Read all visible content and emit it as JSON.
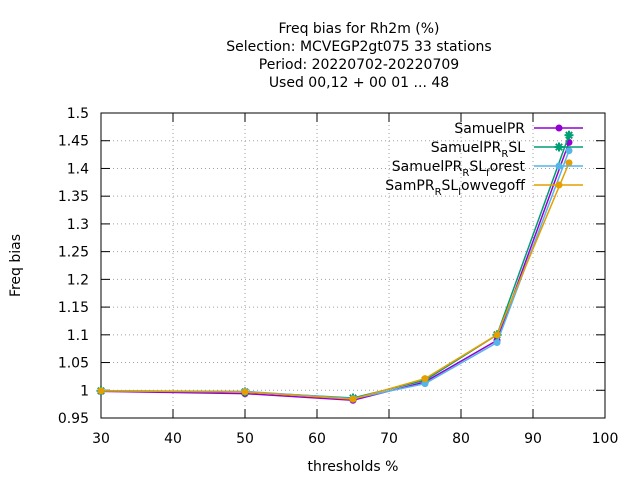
{
  "chart_data": {
    "type": "line",
    "title_lines": [
      "Freq bias  for Rh2m (%)",
      "Selection: MCVEGP2gt075      33 stations",
      "Period: 20220702-20220709",
      "Used  00,12  + 00 01 ... 48"
    ],
    "xlabel": "thresholds %",
    "ylabel": "Freq bias",
    "xlim": [
      30,
      100
    ],
    "ylim": [
      0.95,
      1.5
    ],
    "xticks": [
      30,
      40,
      50,
      60,
      70,
      80,
      90,
      100
    ],
    "yticks": [
      0.95,
      1,
      1.05,
      1.1,
      1.15,
      1.2,
      1.25,
      1.3,
      1.35,
      1.4,
      1.45,
      1.5
    ],
    "grid": true,
    "legend_position": "top-right",
    "x": [
      30,
      50,
      65,
      75,
      85,
      95
    ],
    "series": [
      {
        "name": "SamuelPR",
        "base": "SamuelPR",
        "sub": "",
        "rest": "",
        "sub2": "",
        "rest2": "",
        "color": "#9400d3",
        "marker": "circle",
        "values": [
          0.998,
          0.994,
          0.982,
          1.015,
          1.09,
          1.447
        ]
      },
      {
        "name": "SamuelPR_RSL",
        "base": "SamuelPR",
        "sub": "R",
        "rest": "SL",
        "sub2": "",
        "rest2": "",
        "color": "#009e73",
        "marker": "star",
        "values": [
          0.999,
          0.997,
          0.986,
          1.018,
          1.1,
          1.46
        ]
      },
      {
        "name": "SamuelPR_RSL_forest",
        "base": "SamuelPR",
        "sub": "R",
        "rest": "SL",
        "sub2": "f",
        "rest2": "orest",
        "color": "#56b4e9",
        "marker": "circle",
        "values": [
          0.999,
          0.998,
          0.985,
          1.012,
          1.086,
          1.432
        ]
      },
      {
        "name": "SamPR_RSL_lowvegoff",
        "base": "SamPR",
        "sub": "R",
        "rest": "SL",
        "sub2": "l",
        "rest2": "owvegoff",
        "color": "#e69f00",
        "marker": "circle",
        "values": [
          0.999,
          0.997,
          0.984,
          1.021,
          1.1,
          1.41
        ]
      }
    ]
  }
}
